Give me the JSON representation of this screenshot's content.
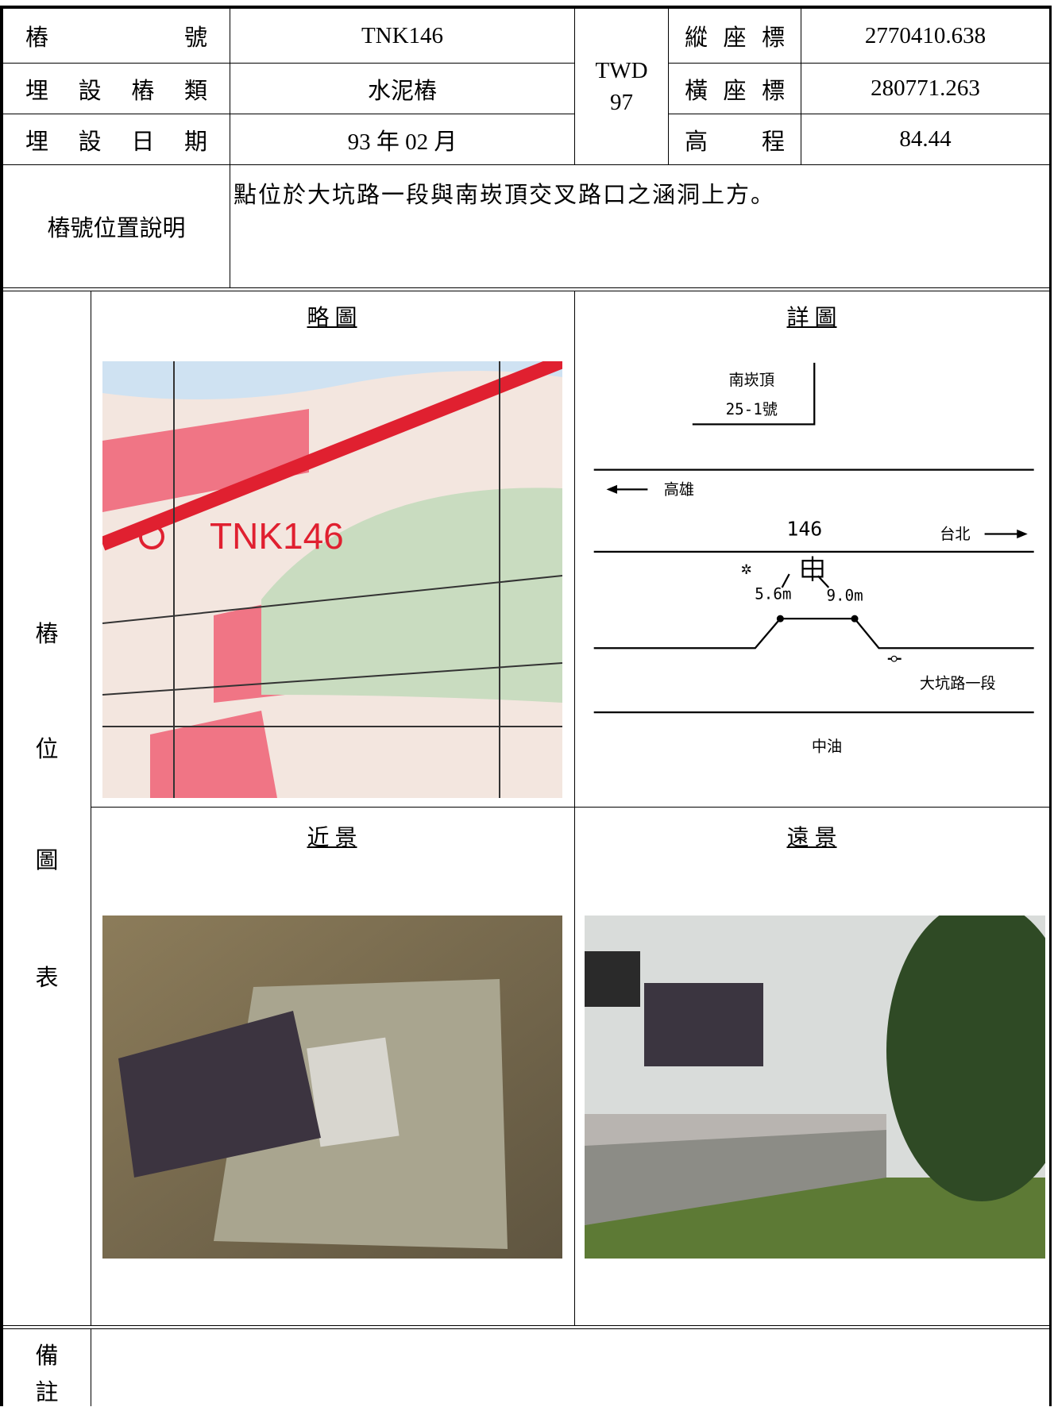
{
  "header": {
    "point_no_label": "樁 號",
    "point_no": "TNK146",
    "datum_top": "TWD",
    "datum_bottom": "97",
    "north_label": "縱 座 標",
    "north": "2770410.638",
    "type_label": "埋 設 樁 類",
    "type": "水泥樁",
    "east_label": "橫 座 標",
    "east": "280771.263",
    "date_label": "埋 設 日 期",
    "date": "93 年 02 月",
    "elev_label": "高 程",
    "elev": "84.44",
    "desc_label": "樁號位置說明",
    "desc": "點位於大坑路一段與南崁頂交叉路口之涵洞上方。"
  },
  "figures": {
    "side_label": [
      "樁",
      "位",
      "圖",
      "表"
    ],
    "sketch_title": "略 圖",
    "detail_title": "詳 圖",
    "near_title": "近 景",
    "far_title": "遠 景",
    "map_label": "TNK146",
    "detail": {
      "building_line1": "南崁頂",
      "building_line2": "25-1號",
      "west": "高雄",
      "east": "台北",
      "point": "146",
      "dist_left": "5.6m",
      "dist_right": "9.0m",
      "road": "大坑路一段",
      "south": "中油"
    }
  },
  "remarks": {
    "label": [
      "備",
      "註"
    ]
  }
}
